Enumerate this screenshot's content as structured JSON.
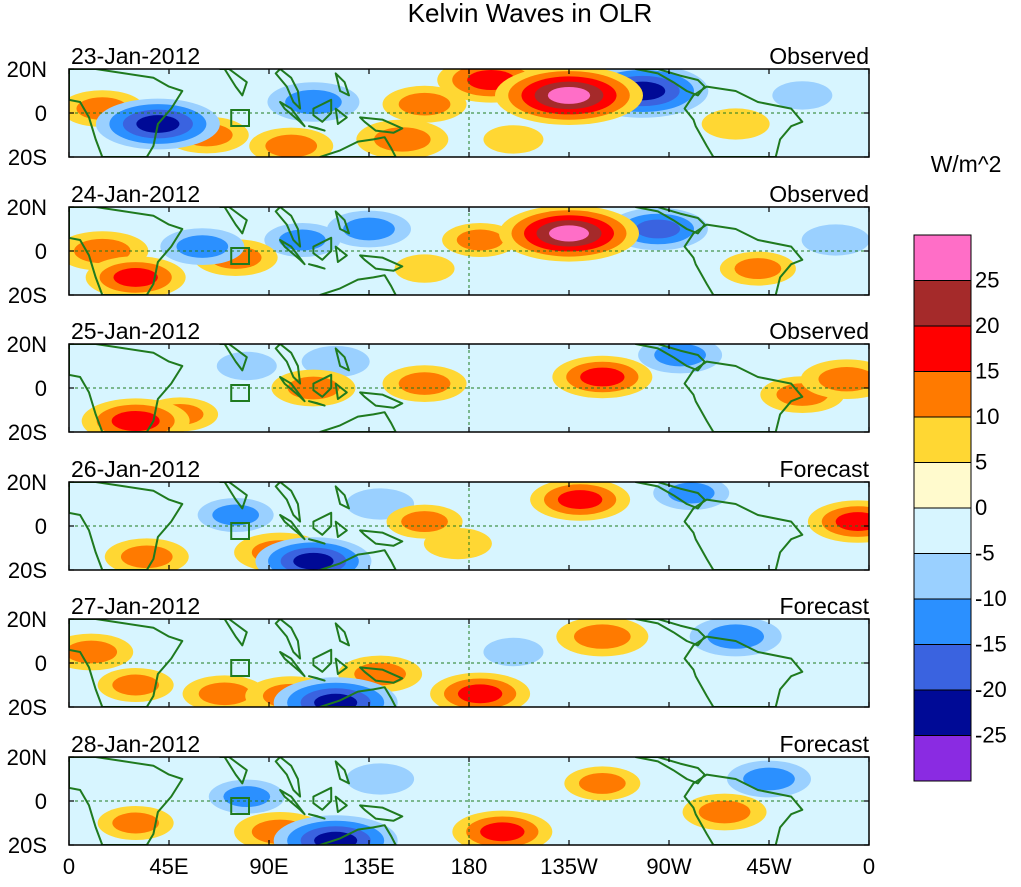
{
  "chart_data": {
    "type": "heatmap",
    "title": "Kelvin Waves in OLR",
    "units_label": "W/m^2",
    "colorbar": {
      "levels": [
        25,
        20,
        15,
        10,
        5,
        0,
        -5,
        -10,
        -15,
        -20,
        -25
      ],
      "colors": [
        "#ff6ec7",
        "#a52a2a",
        "#ff0000",
        "#ff7a00",
        "#ffd733",
        "#fffacd",
        "#d7f5ff",
        "#9ad0ff",
        "#2b90ff",
        "#3a63e0",
        "#000a96",
        "#8a2be2"
      ]
    },
    "x_ticks": [
      "0",
      "45E",
      "90E",
      "135E",
      "180",
      "135W",
      "90W",
      "45W",
      "0"
    ],
    "y_ticks": [
      "20N",
      "0",
      "20S"
    ],
    "lat_range": [
      -20,
      20
    ],
    "lon_range": [
      0,
      360
    ],
    "panels": [
      {
        "date": "23-Jan-2012",
        "label": "Observed",
        "anomalies": [
          {
            "lon": 160,
            "lat": 4,
            "value": 12
          },
          {
            "lon": 190,
            "lat": 15,
            "value": 18
          },
          {
            "lon": 225,
            "lat": 8,
            "value": 28
          },
          {
            "lon": 258,
            "lat": 10,
            "value": -24
          },
          {
            "lon": 245,
            "lat": 16,
            "value": -12
          },
          {
            "lon": 40,
            "lat": -5,
            "value": -22
          },
          {
            "lon": 62,
            "lat": -10,
            "value": 12
          },
          {
            "lon": 110,
            "lat": 5,
            "value": -14
          },
          {
            "lon": 150,
            "lat": -12,
            "value": 14
          },
          {
            "lon": 100,
            "lat": -15,
            "value": 12
          },
          {
            "lon": 15,
            "lat": 2,
            "value": 12
          },
          {
            "lon": 300,
            "lat": -5,
            "value": 8
          },
          {
            "lon": 330,
            "lat": 8,
            "value": -6
          },
          {
            "lon": 200,
            "lat": -12,
            "value": 6
          }
        ]
      },
      {
        "date": "24-Jan-2012",
        "label": "Observed",
        "anomalies": [
          {
            "lon": 15,
            "lat": 0,
            "value": 14
          },
          {
            "lon": 30,
            "lat": -12,
            "value": 16
          },
          {
            "lon": 75,
            "lat": -3,
            "value": 12
          },
          {
            "lon": 185,
            "lat": 5,
            "value": 10
          },
          {
            "lon": 225,
            "lat": 8,
            "value": 26
          },
          {
            "lon": 265,
            "lat": 10,
            "value": -16
          },
          {
            "lon": 310,
            "lat": -8,
            "value": 10
          },
          {
            "lon": 105,
            "lat": 5,
            "value": -10
          },
          {
            "lon": 135,
            "lat": 10,
            "value": -12
          },
          {
            "lon": 60,
            "lat": 2,
            "value": -12
          },
          {
            "lon": 160,
            "lat": -8,
            "value": 6
          },
          {
            "lon": 345,
            "lat": 5,
            "value": -8
          }
        ]
      },
      {
        "date": "25-Jan-2012",
        "label": "Observed",
        "anomalies": [
          {
            "lon": 30,
            "lat": -15,
            "value": 18
          },
          {
            "lon": 50,
            "lat": -12,
            "value": 10
          },
          {
            "lon": 110,
            "lat": 0,
            "value": 12
          },
          {
            "lon": 160,
            "lat": 2,
            "value": 12
          },
          {
            "lon": 240,
            "lat": 5,
            "value": 16
          },
          {
            "lon": 330,
            "lat": -3,
            "value": 12
          },
          {
            "lon": 350,
            "lat": 4,
            "value": 14
          },
          {
            "lon": 120,
            "lat": 12,
            "value": -8
          },
          {
            "lon": 80,
            "lat": 10,
            "value": -6
          },
          {
            "lon": 275,
            "lat": 15,
            "value": -12
          }
        ]
      },
      {
        "date": "26-Jan-2012",
        "label": "Forecast",
        "anomalies": [
          {
            "lon": 35,
            "lat": -14,
            "value": 12
          },
          {
            "lon": 95,
            "lat": -12,
            "value": 14
          },
          {
            "lon": 160,
            "lat": 2,
            "value": 10
          },
          {
            "lon": 175,
            "lat": -8,
            "value": 8
          },
          {
            "lon": 230,
            "lat": 12,
            "value": 16
          },
          {
            "lon": 355,
            "lat": 2,
            "value": 16
          },
          {
            "lon": 110,
            "lat": -16,
            "value": -20
          },
          {
            "lon": 75,
            "lat": 5,
            "value": -10
          },
          {
            "lon": 280,
            "lat": 15,
            "value": -10
          },
          {
            "lon": 140,
            "lat": 10,
            "value": -8
          }
        ]
      },
      {
        "date": "27-Jan-2012",
        "label": "Forecast",
        "anomalies": [
          {
            "lon": 10,
            "lat": 5,
            "value": 12
          },
          {
            "lon": 30,
            "lat": -10,
            "value": 10
          },
          {
            "lon": 70,
            "lat": -14,
            "value": 12
          },
          {
            "lon": 100,
            "lat": -15,
            "value": 14
          },
          {
            "lon": 140,
            "lat": -5,
            "value": 12
          },
          {
            "lon": 185,
            "lat": -14,
            "value": 16
          },
          {
            "lon": 240,
            "lat": 12,
            "value": 14
          },
          {
            "lon": 120,
            "lat": -18,
            "value": -22
          },
          {
            "lon": 300,
            "lat": 12,
            "value": -14
          },
          {
            "lon": 200,
            "lat": 5,
            "value": -6
          }
        ]
      },
      {
        "date": "28-Jan-2012",
        "label": "Forecast",
        "anomalies": [
          {
            "lon": 30,
            "lat": -10,
            "value": 10
          },
          {
            "lon": 95,
            "lat": -14,
            "value": 14
          },
          {
            "lon": 195,
            "lat": -14,
            "value": 16
          },
          {
            "lon": 240,
            "lat": 8,
            "value": 10
          },
          {
            "lon": 295,
            "lat": -5,
            "value": 12
          },
          {
            "lon": 120,
            "lat": -18,
            "value": -22
          },
          {
            "lon": 315,
            "lat": 10,
            "value": -12
          },
          {
            "lon": 80,
            "lat": 2,
            "value": -10
          },
          {
            "lon": 140,
            "lat": 10,
            "value": -8
          }
        ]
      }
    ]
  }
}
